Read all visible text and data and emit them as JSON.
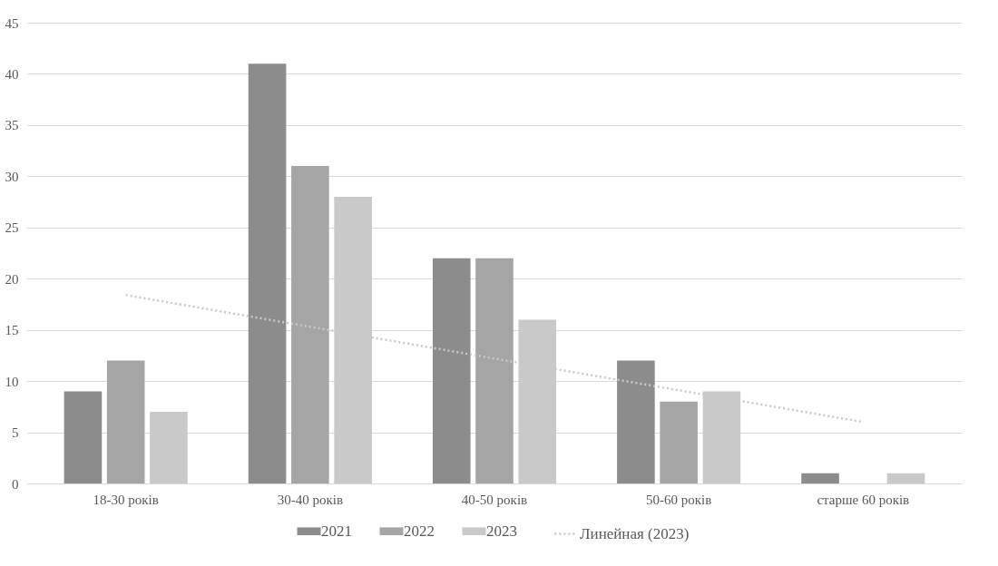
{
  "chart_data": {
    "type": "bar",
    "categories": [
      "18-30 років",
      "30-40 років",
      "40-50 років",
      "50-60 років",
      "старше 60 років"
    ],
    "series": [
      {
        "name": "2021",
        "color": "#8c8c8c",
        "values": [
          9,
          41,
          22,
          12,
          1
        ]
      },
      {
        "name": "2022",
        "color": "#a5a5a5",
        "values": [
          12,
          31,
          22,
          8,
          0
        ]
      },
      {
        "name": "2023",
        "color": "#c9c9c9",
        "values": [
          7,
          28,
          16,
          9,
          1
        ]
      },
      {
        "name": "Линейная (2023)",
        "type": "line",
        "color": "#c9c9c9",
        "line_style": "dotted",
        "marker": "none",
        "x": [
          "18-30 років",
          "старше 60 років"
        ],
        "values": [
          18.4,
          6.0
        ]
      }
    ],
    "ylim": [
      0,
      45
    ],
    "yticks": [
      0,
      5,
      10,
      15,
      20,
      25,
      30,
      35,
      40,
      45
    ],
    "grid": "y",
    "legend": "bottom"
  }
}
